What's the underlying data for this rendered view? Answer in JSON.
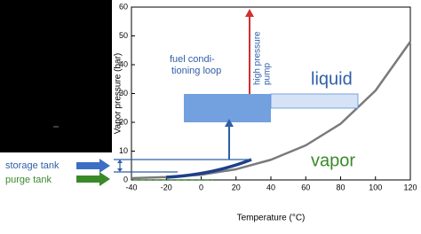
{
  "chart_data": {
    "type": "line",
    "x_label": "Temperature (°C)",
    "y_label": "Vapor pressure (bar)",
    "x": [
      -40,
      -20,
      0,
      20,
      40,
      60,
      80,
      100,
      120
    ],
    "series": [
      {
        "color": "#7a7a7a",
        "values": [
          0.6,
          1,
          1.8,
          3.7,
          7,
          12,
          19.5,
          31,
          48
        ]
      }
    ],
    "xlim": [
      -40,
      120
    ],
    "xticks": [
      -40,
      -20,
      0,
      20,
      40,
      60,
      80,
      100,
      120
    ],
    "ylim": [
      0,
      60
    ],
    "yticks": [
      0,
      10,
      20,
      30,
      40,
      50,
      60
    ],
    "annotations": {
      "loop": [
        "fuel condi-",
        "tioning loop"
      ],
      "pump": [
        "high pressure",
        "pump"
      ],
      "liquid": "liquid",
      "vapor": "vapor",
      "storage": "storage tank",
      "purge": "purge tank"
    }
  }
}
